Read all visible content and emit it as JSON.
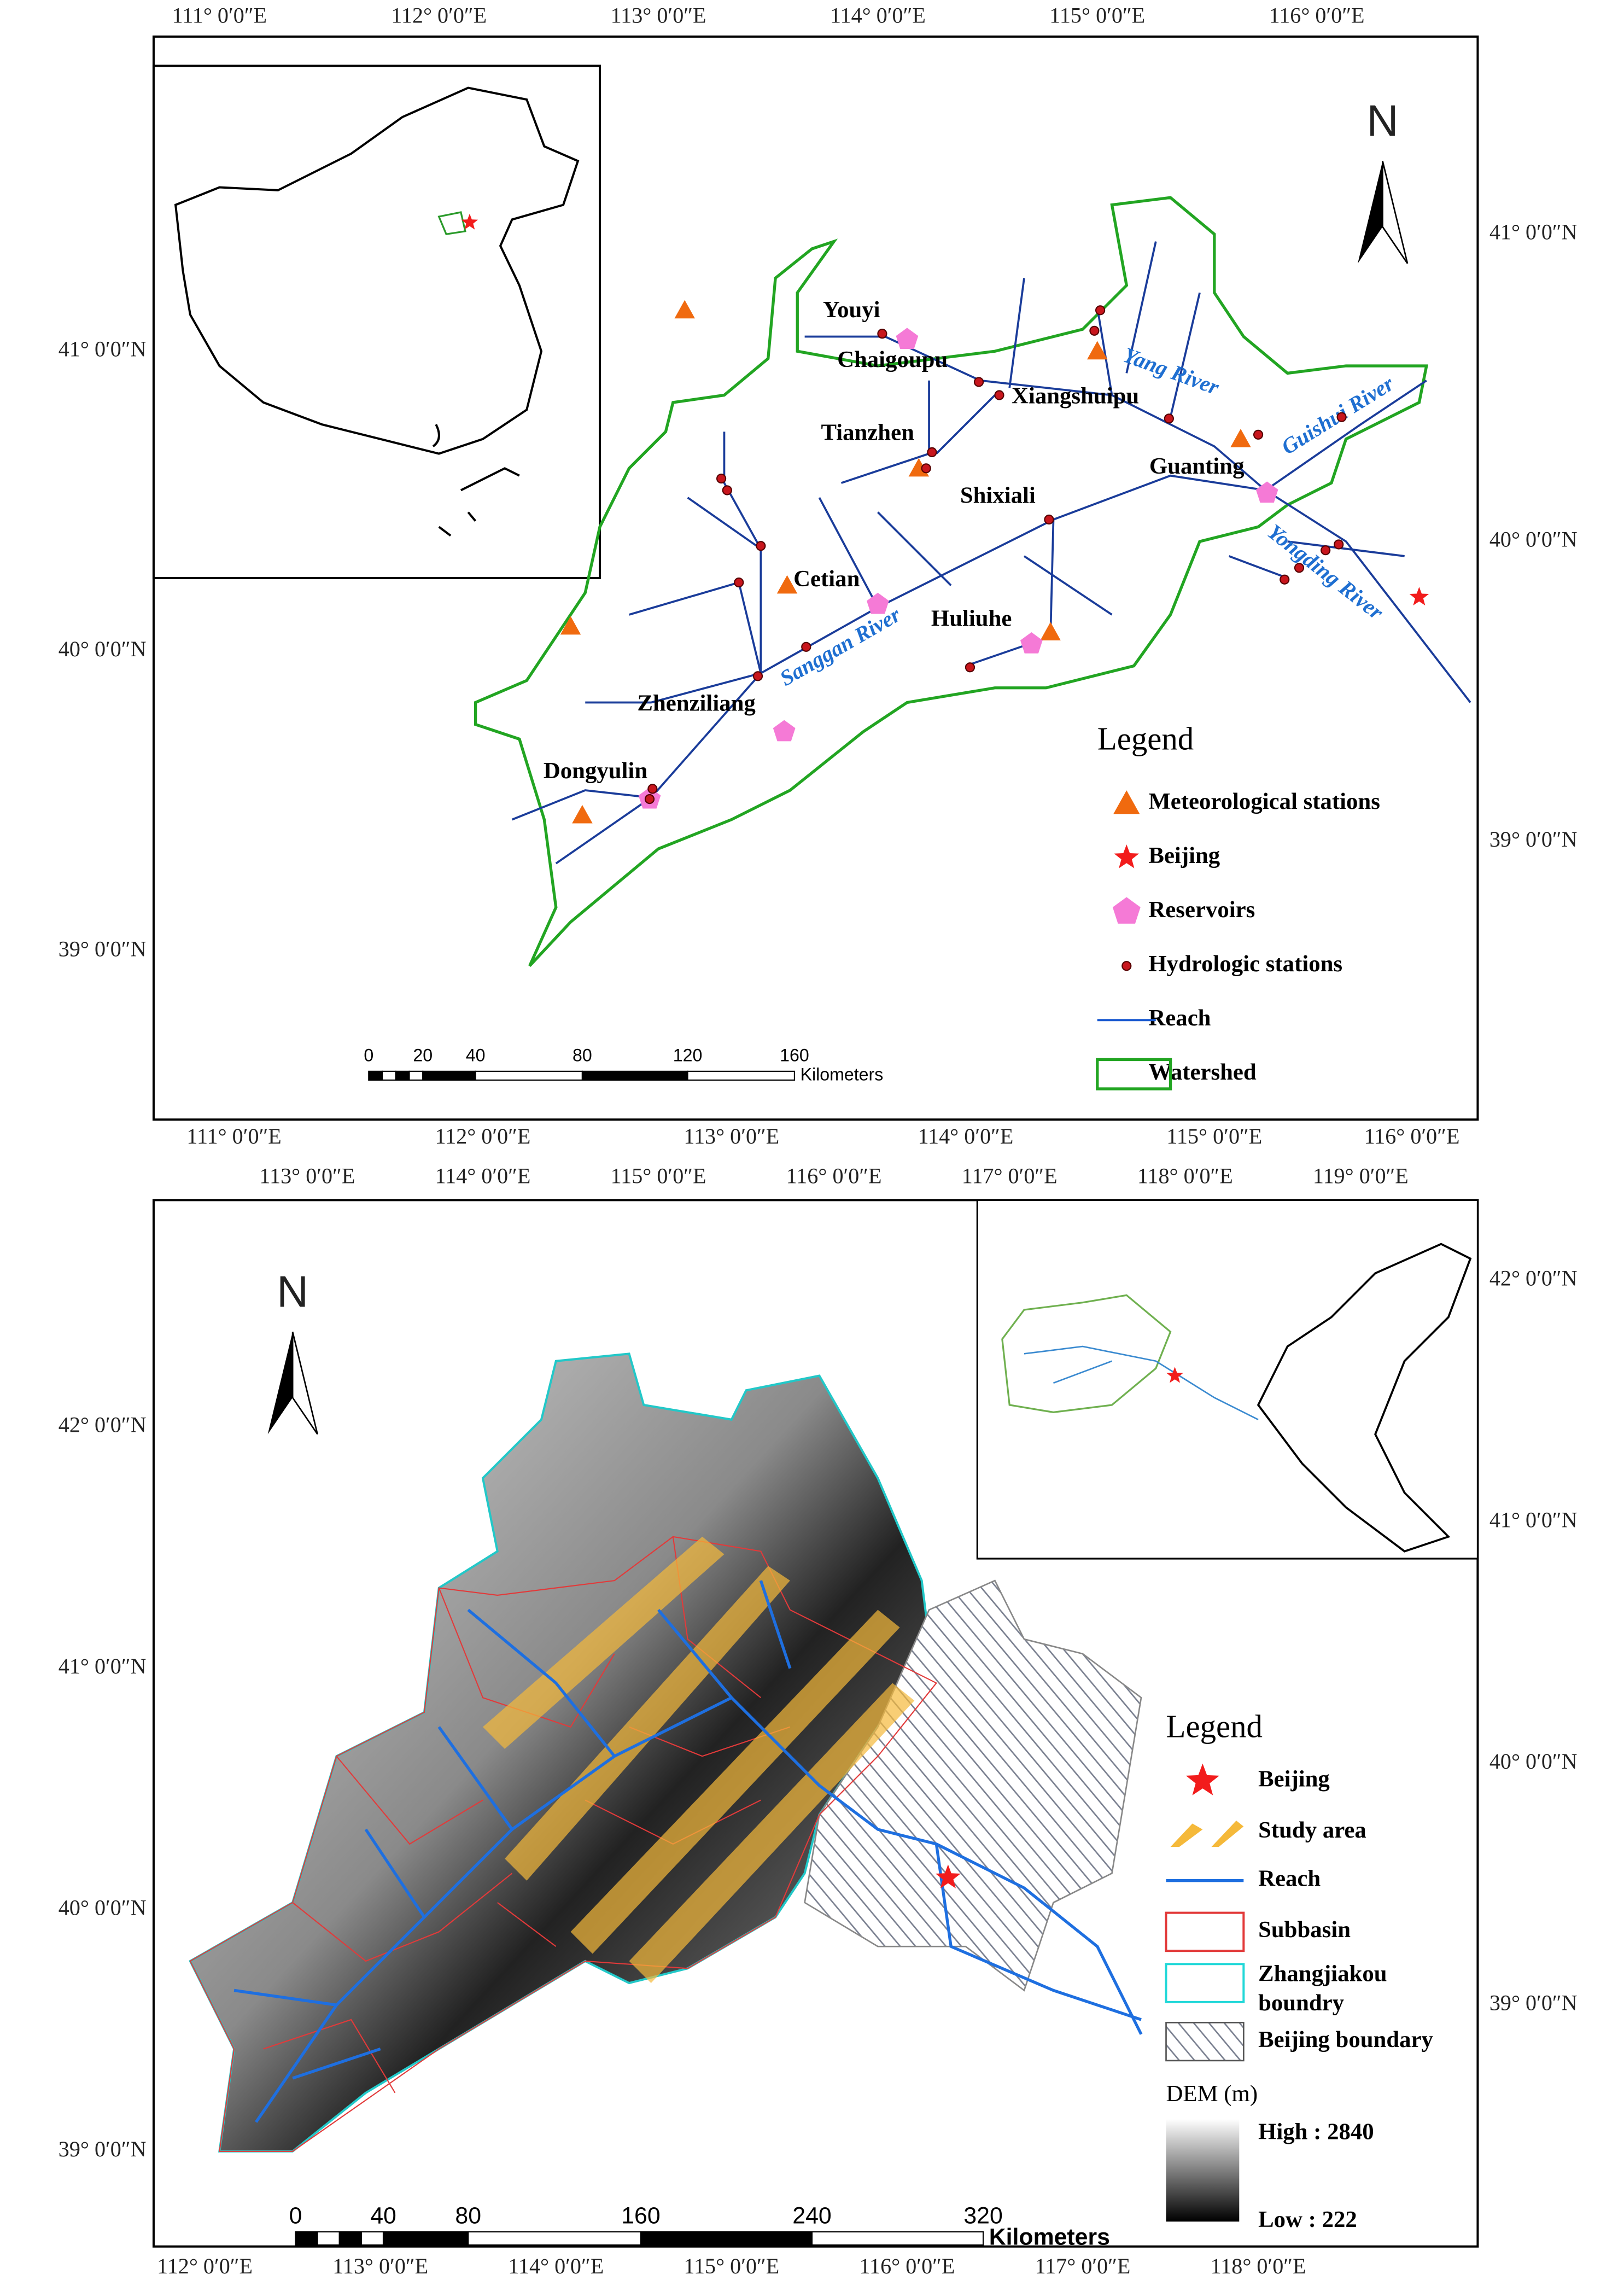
{
  "top_map": {
    "lon_top": [
      "111° 0′0″E",
      "112° 0′0″E",
      "113° 0′0″E",
      "114° 0′0″E",
      "115° 0′0″E",
      "116° 0′0″E"
    ],
    "lon_bottom": [
      "111° 0′0″E",
      "112° 0′0″E",
      "113° 0′0″E",
      "114° 0′0″E",
      "115° 0′0″E",
      "116° 0′0″E"
    ],
    "lat_left": [
      "41° 0′0″N",
      "40° 0′0″N",
      "39° 0′0″N"
    ],
    "lat_right": [
      "41° 0′0″N",
      "40° 0′0″N",
      "39° 0′0″N"
    ],
    "north": "N",
    "places": [
      "Youyi",
      "Chaigoupu",
      "Xiangshuipu",
      "Tianzhen",
      "Guanting",
      "Shixiali",
      "Cetian",
      "Huliuhe",
      "Zhenziliang",
      "Dongyulin"
    ],
    "rivers": [
      "Yang River",
      "Guishui River",
      "Yongding River",
      "Sanggan River"
    ],
    "scale": [
      0,
      20,
      40,
      80,
      120,
      160
    ],
    "scale_unit": "Kilometers",
    "legend": {
      "title": "Legend",
      "items": [
        "Meteorological stations",
        "Beijing",
        "Reservoirs",
        "Hydrologic stations",
        "Reach",
        "Watershed"
      ]
    }
  },
  "bottom_map": {
    "lon_top": [
      "113° 0′0″E",
      "114° 0′0″E",
      "115° 0′0″E",
      "116° 0′0″E",
      "117° 0′0″E",
      "118° 0′0″E",
      "119° 0′0″E"
    ],
    "lon_bottom": [
      "112° 0′0″E",
      "113° 0′0″E",
      "114° 0′0″E",
      "115° 0′0″E",
      "116° 0′0″E",
      "117° 0′0″E",
      "118° 0′0″E"
    ],
    "lat_left": [
      "42° 0′0″N",
      "41° 0′0″N",
      "40° 0′0″N",
      "39° 0′0″N"
    ],
    "lat_right": [
      "42° 0′0″N",
      "41° 0′0″N",
      "40° 0′0″N",
      "39° 0′0″N"
    ],
    "north": "N",
    "scale": [
      0,
      40,
      80,
      160,
      240,
      320
    ],
    "scale_unit": "Kilometers",
    "legend": {
      "title": "Legend",
      "items": [
        "Beijing",
        "Study area",
        "Reach",
        "Subbasin",
        [
          "Zhangjiakou",
          "boundry"
        ],
        "Beijing boundary"
      ]
    },
    "dem": {
      "title": "DEM (m)",
      "high": "High : 2840",
      "low": "Low : 222"
    }
  }
}
